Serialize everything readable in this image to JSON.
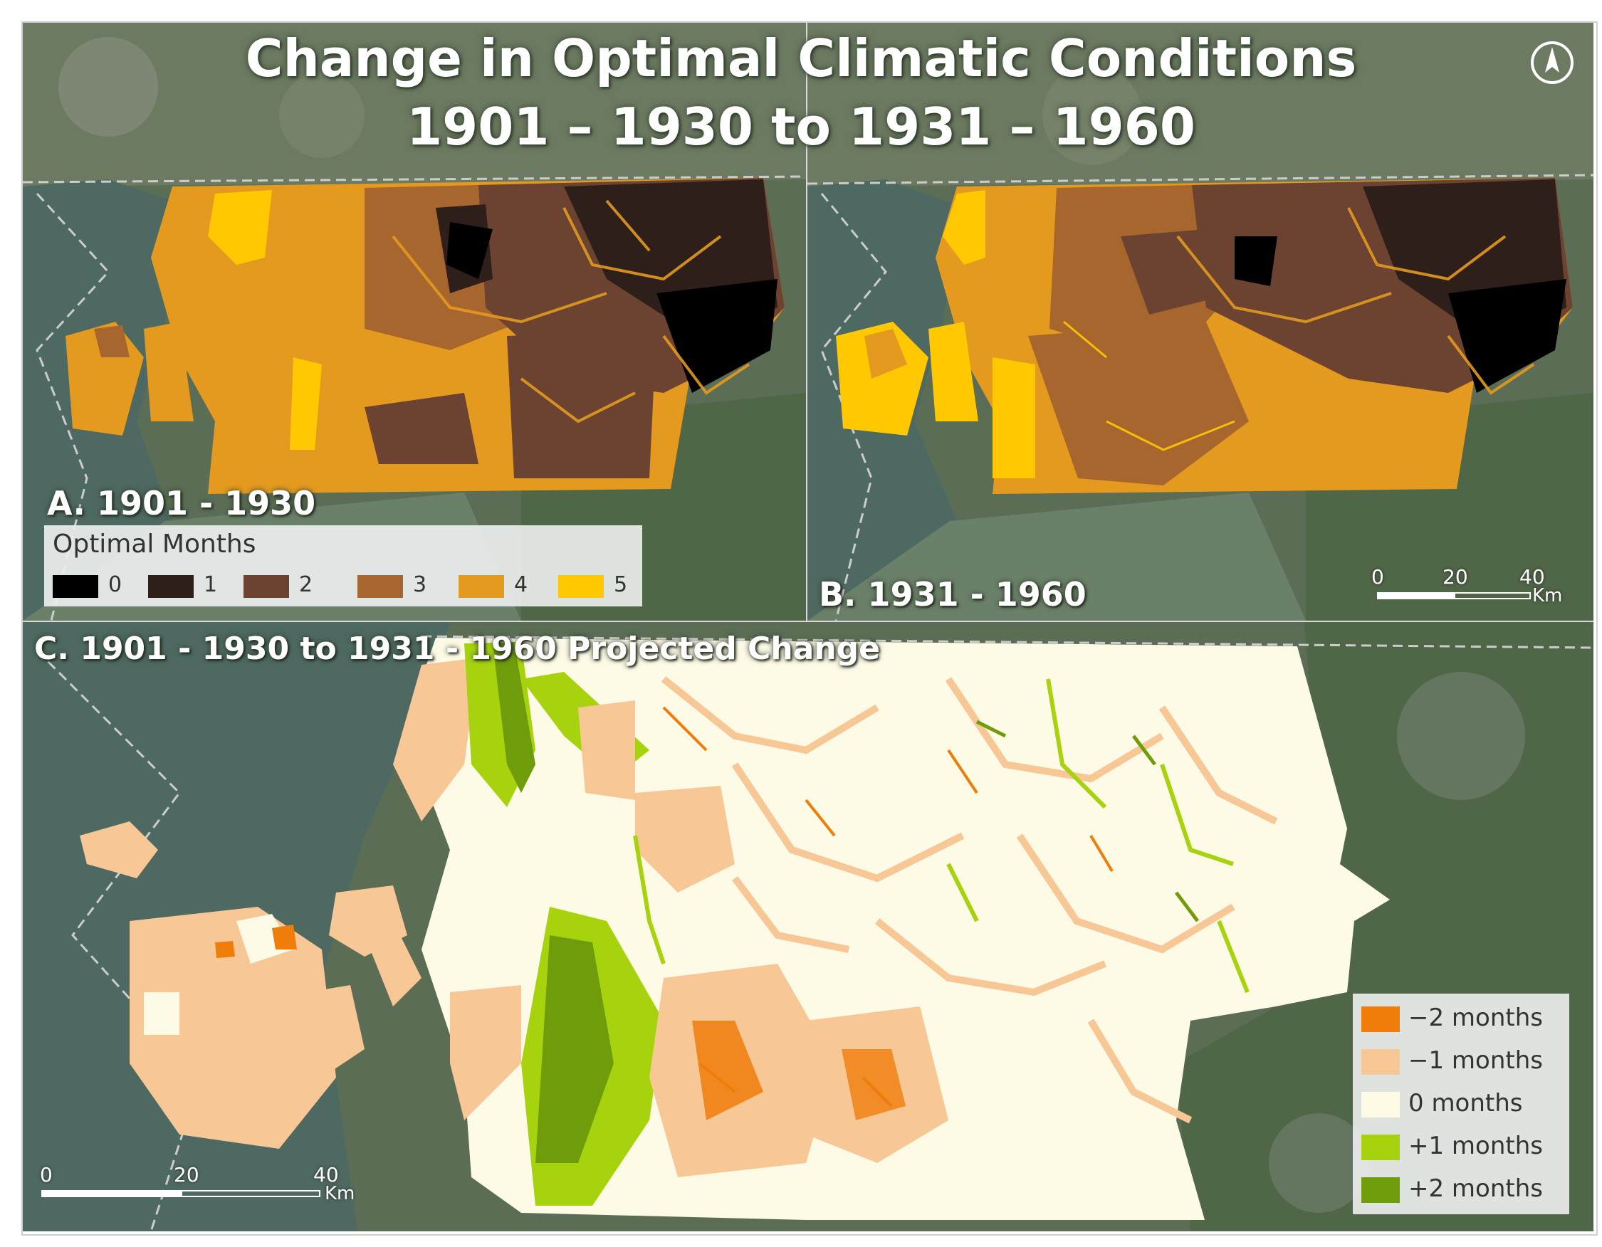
{
  "title": {
    "line1": "Change in Optimal Climatic Conditions",
    "line2": "1901 – 1930 to 1931 – 1960"
  },
  "panels": {
    "a_label": "A. 1901 - 1930",
    "b_label": "B. 1931 - 1960",
    "c_label": "C. 1901 - 1930 to 1931 - 1960 Projected Change"
  },
  "legend_optimal": {
    "title": "Optimal Months",
    "items": [
      {
        "label": "0",
        "color": "#000000"
      },
      {
        "label": "1",
        "color": "#2e1f1b"
      },
      {
        "label": "2",
        "color": "#6b4330"
      },
      {
        "label": "3",
        "color": "#a8662f"
      },
      {
        "label": "4",
        "color": "#e39a1f"
      },
      {
        "label": "5",
        "color": "#ffc800"
      }
    ]
  },
  "legend_change": {
    "items": [
      {
        "label": "−2 months",
        "color": "#f07d0a"
      },
      {
        "label": "−1 months",
        "color": "#f8c796"
      },
      {
        "label": "0 months",
        "color": "#fdfae6"
      },
      {
        "label": "+1 months",
        "color": "#a6d30e"
      },
      {
        "label": "+2 months",
        "color": "#6f9c0a"
      }
    ]
  },
  "scale_b": {
    "ticks": [
      "0",
      "20",
      "40"
    ],
    "unit": "Km"
  },
  "scale_c": {
    "ticks": [
      "0",
      "20",
      "40"
    ],
    "unit": "Km"
  },
  "north_arrow": {
    "icon": "north-arrow-icon"
  }
}
